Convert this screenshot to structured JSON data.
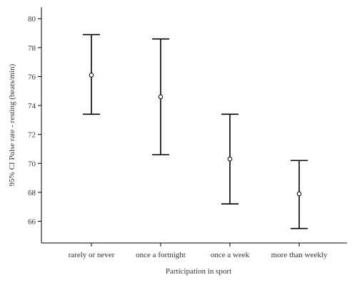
{
  "chart_data": {
    "type": "errorbar",
    "title": "",
    "xlabel": "Participation in sport",
    "ylabel": "95% CI Pulse rate - resting (beats/min)",
    "ylim": [
      64.5,
      80.8
    ],
    "yticks": [
      66,
      68,
      70,
      72,
      74,
      76,
      78,
      80
    ],
    "ytick_labels": [
      "66",
      "68",
      "70",
      "72",
      "74",
      "76",
      "78",
      "80"
    ],
    "grid": false,
    "legend": "none",
    "categories": [
      "rarely or never",
      "once a fortnight",
      "once a week",
      "more than weekly"
    ],
    "series": [
      {
        "mean": [
          76.1,
          74.6,
          70.3,
          67.9
        ],
        "lower": [
          73.4,
          70.6,
          67.2,
          65.5
        ],
        "upper": [
          78.9,
          78.6,
          73.4,
          70.2
        ]
      }
    ]
  }
}
